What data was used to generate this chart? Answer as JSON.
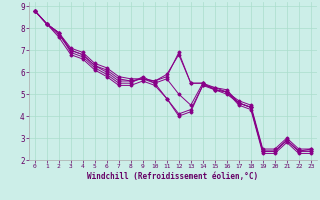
{
  "xlabel": "Windchill (Refroidissement éolien,°C)",
  "background_color": "#cceee8",
  "line_color": "#880088",
  "grid_color": "#aaddcc",
  "xlim": [
    -0.5,
    23.5
  ],
  "ylim": [
    2,
    9.2
  ],
  "xticks": [
    0,
    1,
    2,
    3,
    4,
    5,
    6,
    7,
    8,
    9,
    10,
    11,
    12,
    13,
    14,
    15,
    16,
    17,
    18,
    19,
    20,
    21,
    22,
    23
  ],
  "yticks": [
    2,
    3,
    4,
    5,
    6,
    7,
    8,
    9
  ],
  "tick_fontsize": 5.5,
  "xlabel_fontsize": 5.5,
  "series": [
    {
      "x": [
        0,
        1,
        2,
        3,
        4,
        5,
        6,
        7,
        8,
        9,
        10,
        11,
        12,
        13,
        14,
        15,
        16,
        17,
        18,
        19,
        20,
        21,
        22,
        23
      ],
      "y": [
        8.8,
        8.2,
        7.8,
        6.9,
        6.7,
        6.2,
        5.9,
        5.5,
        5.5,
        5.8,
        5.5,
        4.8,
        4.1,
        4.3,
        5.4,
        5.3,
        5.2,
        4.6,
        4.4,
        2.4,
        2.4,
        2.9,
        2.4,
        2.4
      ]
    },
    {
      "x": [
        0,
        1,
        2,
        3,
        4,
        5,
        6,
        7,
        8,
        9,
        10,
        11,
        12,
        13,
        14,
        15,
        16,
        17,
        18,
        19,
        20,
        21,
        22,
        23
      ],
      "y": [
        8.8,
        8.2,
        7.7,
        7.0,
        6.8,
        6.3,
        6.1,
        5.7,
        5.6,
        5.7,
        5.6,
        5.8,
        6.9,
        5.5,
        5.5,
        5.2,
        5.0,
        4.6,
        4.4,
        2.4,
        2.4,
        2.9,
        2.4,
        2.5
      ]
    },
    {
      "x": [
        0,
        1,
        2,
        3,
        4,
        5,
        6,
        7,
        8,
        9,
        10,
        11,
        12,
        13,
        14,
        15,
        16,
        17,
        18,
        19,
        20,
        21,
        22,
        23
      ],
      "y": [
        8.8,
        8.2,
        7.8,
        7.1,
        6.9,
        6.4,
        6.2,
        5.8,
        5.7,
        5.7,
        5.6,
        5.9,
        6.8,
        5.5,
        5.5,
        5.3,
        5.1,
        4.7,
        4.5,
        2.5,
        2.5,
        3.0,
        2.5,
        2.5
      ]
    },
    {
      "x": [
        0,
        1,
        2,
        3,
        4,
        5,
        6,
        7,
        8,
        9,
        10,
        11,
        12,
        13,
        14,
        15,
        16,
        17,
        18,
        19,
        20,
        21,
        22,
        23
      ],
      "y": [
        8.8,
        8.2,
        7.8,
        7.0,
        6.8,
        6.3,
        6.0,
        5.6,
        5.6,
        5.7,
        5.5,
        5.7,
        5.0,
        4.5,
        5.5,
        5.2,
        5.1,
        4.6,
        4.4,
        2.4,
        2.4,
        2.9,
        2.4,
        2.4
      ]
    },
    {
      "x": [
        0,
        1,
        2,
        3,
        4,
        5,
        6,
        7,
        8,
        9,
        10,
        11,
        12,
        13,
        14,
        15,
        16,
        17,
        18,
        19,
        20,
        21,
        22,
        23
      ],
      "y": [
        8.8,
        8.2,
        7.6,
        6.8,
        6.6,
        6.1,
        5.8,
        5.4,
        5.4,
        5.6,
        5.4,
        4.8,
        4.0,
        4.2,
        5.4,
        5.2,
        5.1,
        4.5,
        4.3,
        2.3,
        2.3,
        2.8,
        2.3,
        2.3
      ]
    }
  ]
}
